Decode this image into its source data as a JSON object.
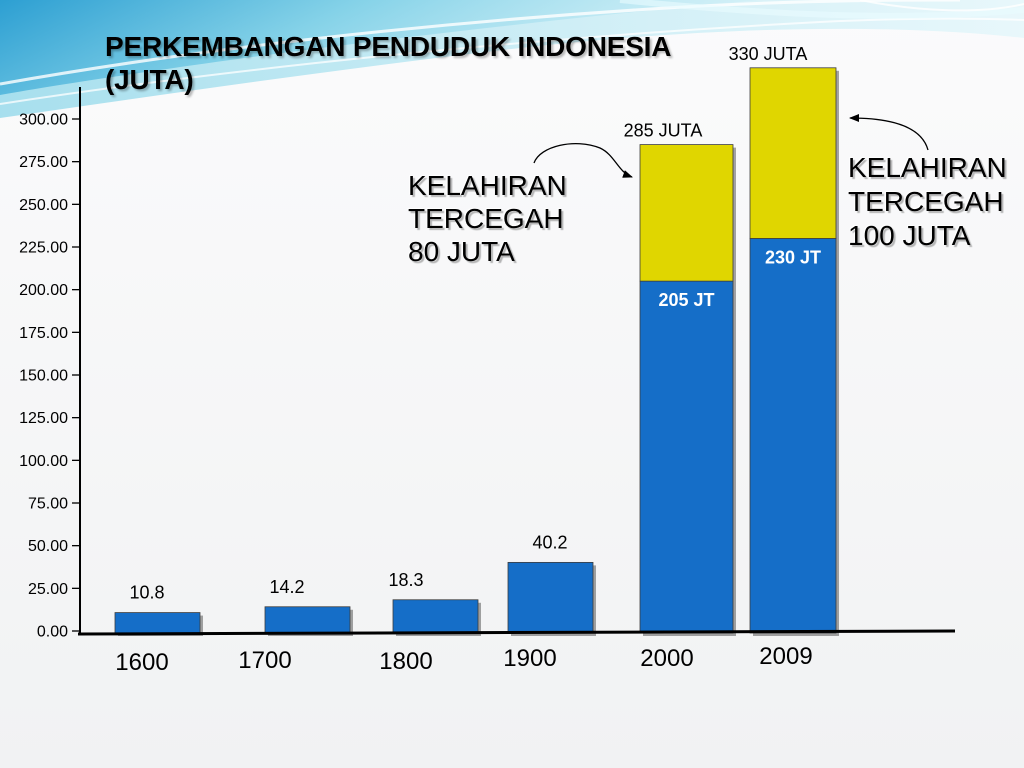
{
  "chart_data": {
    "type": "bar",
    "stacked": true,
    "title": "PERKEMBANGAN PENDUDUK INDONESIA (JUTA)",
    "xlabel": "",
    "ylabel": "",
    "categories": [
      "1600",
      "1700",
      "1800",
      "1900",
      "2000",
      "2009"
    ],
    "series": [
      {
        "values": [
          10.8,
          14.2,
          18.3,
          40.2,
          205,
          230
        ],
        "color": "#156ec8"
      },
      {
        "values": [
          0,
          0,
          0,
          0,
          80,
          100
        ],
        "color": "#e0d600"
      }
    ],
    "data_labels": [
      "10.8",
      "14.2",
      "18.3",
      "40.2",
      "205 JT",
      "230 JT"
    ],
    "total_labels": [
      "",
      "",
      "",
      "",
      "285 JUTA",
      "330 JUTA"
    ],
    "y_ticks": [
      "0.00",
      "25.00",
      "50.00",
      "75.00",
      "100.00",
      "125.00",
      "150.00",
      "175.00",
      "200.00",
      "225.00",
      "250.00",
      "275.00",
      "300.00"
    ],
    "ylim": [
      0,
      330
    ],
    "grid": false,
    "legend": "none",
    "annotations": [
      {
        "lines": [
          "KELAHIRAN",
          "TERCEGAH",
          "80 JUTA"
        ]
      },
      {
        "lines": [
          "KELAHIRAN",
          "TERCEGAH",
          "100 JUTA"
        ]
      }
    ]
  },
  "theme": {
    "accent": "#2a9fd0",
    "axis_color": "#000000",
    "inner_label_color": "#ffffff"
  }
}
